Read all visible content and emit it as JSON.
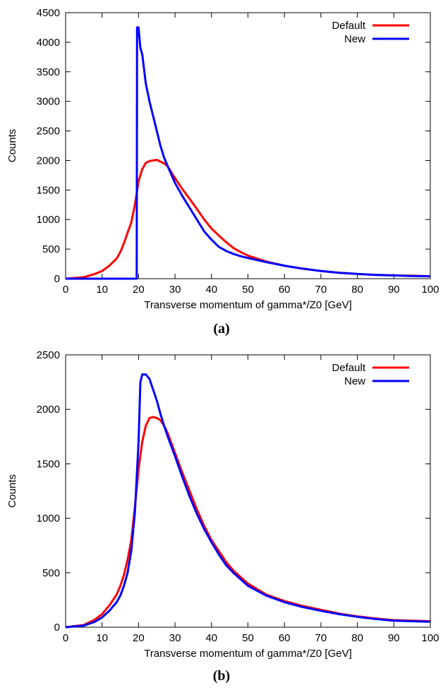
{
  "chart_data": [
    {
      "type": "line",
      "panel_label": "(a)",
      "xlabel": "Transverse momentum of gamma*/Z0 [GeV]",
      "ylabel": "Counts",
      "xlim": [
        0,
        100
      ],
      "ylim": [
        0,
        4500
      ],
      "xticks": [
        0,
        10,
        20,
        30,
        40,
        50,
        60,
        70,
        80,
        90,
        100
      ],
      "yticks": [
        0,
        500,
        1000,
        1500,
        2000,
        2500,
        3000,
        3500,
        4000,
        4500
      ],
      "legend_position": "top-right",
      "grid": false,
      "series": [
        {
          "name": "Default",
          "color": "#ff0000",
          "x": [
            0,
            5,
            8,
            10,
            12,
            14,
            15,
            16,
            17,
            18,
            19,
            20,
            21,
            22,
            23,
            24,
            25,
            26,
            27,
            28,
            30,
            32,
            34,
            36,
            38,
            40,
            42,
            44,
            46,
            48,
            50,
            55,
            60,
            65,
            70,
            75,
            80,
            85,
            90,
            95,
            100
          ],
          "y": [
            0,
            25,
            80,
            130,
            220,
            340,
            450,
            600,
            780,
            950,
            1250,
            1650,
            1850,
            1960,
            1990,
            2000,
            2010,
            1980,
            1950,
            1900,
            1700,
            1520,
            1350,
            1180,
            1000,
            850,
            730,
            620,
            520,
            450,
            390,
            290,
            220,
            170,
            130,
            100,
            80,
            65,
            55,
            50,
            40
          ]
        },
        {
          "name": "New",
          "color": "#0000ff",
          "x": [
            0,
            19.5,
            19.6,
            20,
            20.5,
            21,
            22,
            23,
            24,
            25,
            26,
            27,
            28,
            30,
            32,
            34,
            36,
            38,
            40,
            42,
            44,
            46,
            48,
            50,
            55,
            60,
            65,
            70,
            75,
            80,
            85,
            90,
            95,
            100
          ],
          "y": [
            0,
            0,
            4250,
            4250,
            3900,
            3800,
            3300,
            3000,
            2750,
            2500,
            2250,
            2050,
            1900,
            1620,
            1400,
            1200,
            1000,
            800,
            660,
            540,
            470,
            420,
            380,
            350,
            280,
            220,
            170,
            130,
            100,
            80,
            65,
            55,
            45,
            40
          ]
        }
      ]
    },
    {
      "type": "line",
      "panel_label": "(b)",
      "xlabel": "Transverse momentum of gamma*/Z0 [GeV]",
      "ylabel": "Counts",
      "xlim": [
        0,
        100
      ],
      "ylim": [
        0,
        2500
      ],
      "xticks": [
        0,
        10,
        20,
        30,
        40,
        50,
        60,
        70,
        80,
        90,
        100
      ],
      "yticks": [
        0,
        500,
        1000,
        1500,
        2000,
        2500
      ],
      "legend_position": "top-right",
      "grid": false,
      "series": [
        {
          "name": "Default",
          "color": "#ff0000",
          "x": [
            0,
            5,
            8,
            10,
            12,
            14,
            15,
            16,
            17,
            18,
            19,
            20,
            21,
            22,
            23,
            24,
            25,
            26,
            27,
            28,
            30,
            32,
            34,
            36,
            38,
            40,
            42,
            44,
            46,
            48,
            50,
            55,
            60,
            65,
            70,
            75,
            80,
            85,
            90,
            95,
            100
          ],
          "y": [
            0,
            20,
            70,
            120,
            200,
            300,
            380,
            480,
            620,
            800,
            1100,
            1450,
            1700,
            1850,
            1920,
            1930,
            1920,
            1900,
            1850,
            1780,
            1600,
            1420,
            1250,
            1080,
            930,
            800,
            700,
            600,
            520,
            460,
            400,
            300,
            240,
            195,
            160,
            125,
            100,
            80,
            65,
            60,
            55
          ]
        },
        {
          "name": "New",
          "color": "#0000ff",
          "x": [
            0,
            5,
            8,
            10,
            12,
            14,
            15,
            16,
            17,
            18,
            19,
            20,
            20.5,
            21,
            22,
            23,
            24,
            25,
            26,
            27,
            28,
            30,
            32,
            34,
            36,
            38,
            40,
            42,
            44,
            46,
            48,
            50,
            55,
            60,
            65,
            70,
            75,
            80,
            85,
            90,
            95,
            100
          ],
          "y": [
            0,
            15,
            50,
            90,
            150,
            230,
            290,
            380,
            500,
            700,
            1050,
            1700,
            2250,
            2320,
            2320,
            2280,
            2180,
            2080,
            1960,
            1850,
            1750,
            1570,
            1380,
            1200,
            1040,
            900,
            780,
            670,
            570,
            500,
            440,
            380,
            290,
            230,
            185,
            150,
            120,
            95,
            75,
            60,
            55,
            50
          ]
        }
      ]
    }
  ]
}
